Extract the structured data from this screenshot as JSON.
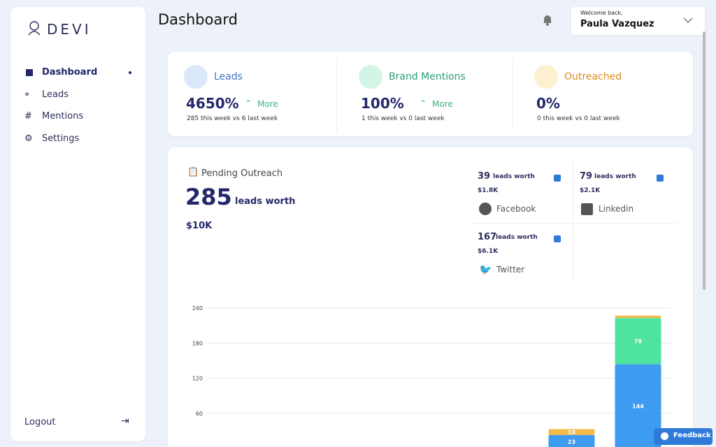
{
  "sidebar": {
    "logo": "DEVI",
    "nav": [
      "Dashboard",
      "Leads",
      "Mentions",
      "Settings"
    ],
    "logout": "Logout"
  },
  "header": {
    "title": "Dashboard",
    "welcome": "Welcome back,",
    "user": "Paula Vazquez"
  },
  "stats": [
    {
      "label": "Leads",
      "value": "4650%",
      "trend": "More",
      "note": "285 this week vs 6 last week"
    },
    {
      "label": "Brand Mentions",
      "value": "100%",
      "trend": "More",
      "note": "1 this week vs 0 last week"
    },
    {
      "label": "Outreached",
      "value": "0%",
      "note": "0 this week vs 0 last week"
    }
  ],
  "pending": {
    "title": "Pending Outreach",
    "count": "285",
    "unit": "leads worth",
    "amount": "$10K"
  },
  "sources": [
    {
      "count": "39",
      "unit": "leads worth",
      "amount": "$1.8K",
      "name": "Facebook"
    },
    {
      "count": "79",
      "unit": "leads worth",
      "amount": "$2.1K",
      "name": "Linkedin"
    },
    {
      "count": "167",
      "unit": "leads worth",
      "amount": "$6.1K",
      "name": "Twitter"
    }
  ],
  "chart_data": {
    "type": "stacked-bar",
    "categories": [
      null,
      null,
      null,
      null,
      null,
      null,
      null
    ],
    "series": [
      {
        "color": "#3d9bf0",
        "values": [
          null,
          null,
          null,
          null,
          null,
          23,
          144
        ]
      },
      {
        "color": "#4fe3a0",
        "values": [
          null,
          null,
          null,
          null,
          null,
          null,
          79
        ]
      },
      {
        "color": "#f5b94a",
        "values": [
          null,
          null,
          null,
          null,
          null,
          10,
          4
        ]
      }
    ],
    "ylim": [
      0,
      240
    ],
    "yticks": [
      60,
      120,
      180,
      240
    ],
    "grid": true
  },
  "feedback": "Feedback"
}
